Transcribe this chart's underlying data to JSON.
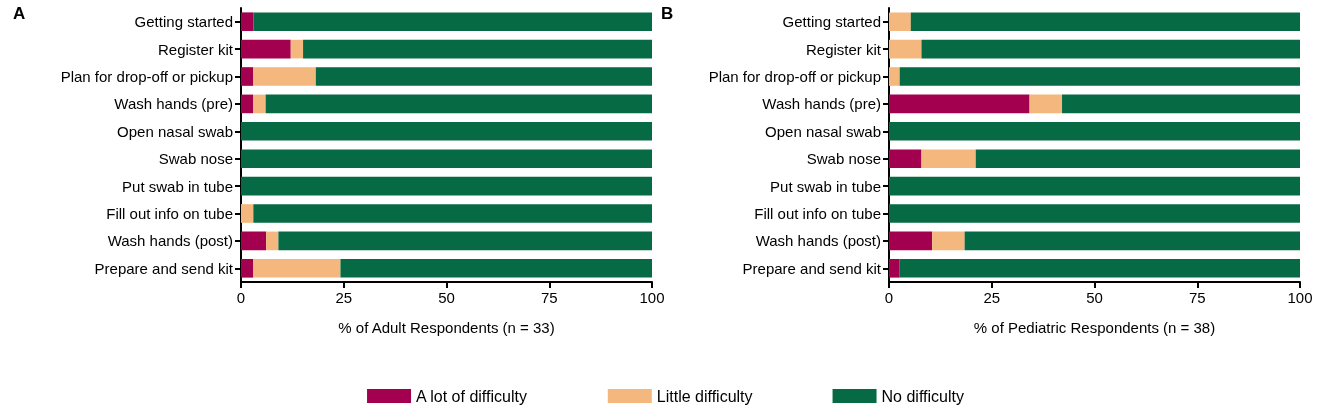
{
  "chart_data": [
    {
      "type": "bar",
      "orientation": "horizontal",
      "stacked": true,
      "title": "A",
      "xlabel": "% of Adult Respondents (n = 33)",
      "categories": [
        "Getting started",
        "Register kit",
        "Plan for drop-off or pickup",
        "Wash hands (pre)",
        "Open nasal swab",
        "Swab nose",
        "Put swab in tube",
        "Fill out info on tube",
        "Wash hands (post)",
        "Prepare and send kit"
      ],
      "series": [
        {
          "name": "A lot of difficulty",
          "color": "#a3004f",
          "values": [
            3.0,
            12.1,
            3.0,
            3.0,
            0,
            0,
            0,
            0,
            6.1,
            3.0
          ]
        },
        {
          "name": "Little difficulty",
          "color": "#f4b87e",
          "values": [
            0,
            3.0,
            15.2,
            3.0,
            0,
            0,
            0,
            3.0,
            3.0,
            21.2
          ]
        },
        {
          "name": "No difficulty",
          "color": "#066a45",
          "values": [
            97.0,
            84.9,
            81.8,
            94.0,
            100,
            100,
            100,
            97.0,
            90.9,
            75.8
          ]
        }
      ],
      "xlim": [
        0,
        100
      ],
      "xticks": [
        0,
        25,
        50,
        75,
        100
      ],
      "grid": false,
      "legend": "bottom"
    },
    {
      "type": "bar",
      "orientation": "horizontal",
      "stacked": true,
      "title": "B",
      "xlabel": "% of Pediatric Respondents (n = 38)",
      "categories": [
        "Getting started",
        "Register kit",
        "Plan for drop-off or pickup",
        "Wash hands (pre)",
        "Open nasal swab",
        "Swab nose",
        "Put swab in tube",
        "Fill out info on tube",
        "Wash hands (post)",
        "Prepare and send kit"
      ],
      "series": [
        {
          "color": "#a3004f",
          "values": [
            0,
            0,
            0,
            34.2,
            0,
            7.9,
            0,
            0,
            10.5,
            2.6
          ]
        },
        {
          "color": "#f4b87e",
          "values": [
            5.3,
            7.9,
            2.6,
            7.9,
            0,
            13.2,
            0,
            0,
            7.9,
            0
          ]
        },
        {
          "color": "#066a45",
          "values": [
            94.7,
            92.1,
            97.4,
            57.9,
            100,
            78.9,
            100,
            100,
            81.6,
            97.4
          ]
        }
      ],
      "xlim": [
        0,
        100
      ],
      "xticks": [
        0,
        25,
        50,
        75,
        100
      ],
      "grid": false,
      "legend": false
    }
  ]
}
